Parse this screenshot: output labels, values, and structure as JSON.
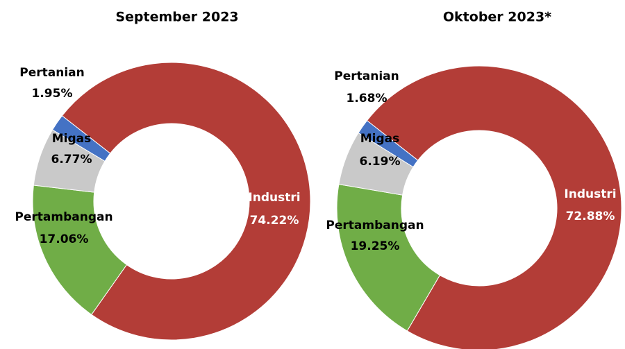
{
  "chart_data": [
    {
      "type": "donut",
      "title": "September 2023",
      "categories": [
        "Industri",
        "Pertambangan",
        "Migas",
        "Pertanian"
      ],
      "values": [
        74.22,
        17.06,
        6.77,
        1.95
      ],
      "value_labels": [
        "74.22%",
        "17.06%",
        "6.77%",
        "1.95%"
      ],
      "colors": [
        "#b33d37",
        "#70ad47",
        "#c9c9c9",
        "#4472c4"
      ]
    },
    {
      "type": "donut",
      "title": "Oktober 2023*",
      "categories": [
        "Industri",
        "Pertambangan",
        "Migas",
        "Pertanian"
      ],
      "values": [
        72.88,
        19.25,
        6.19,
        1.68
      ],
      "value_labels": [
        "72.88%",
        "19.25%",
        "6.19%",
        "1.68%"
      ],
      "colors": [
        "#b33d37",
        "#70ad47",
        "#c9c9c9",
        "#4472c4"
      ]
    }
  ]
}
